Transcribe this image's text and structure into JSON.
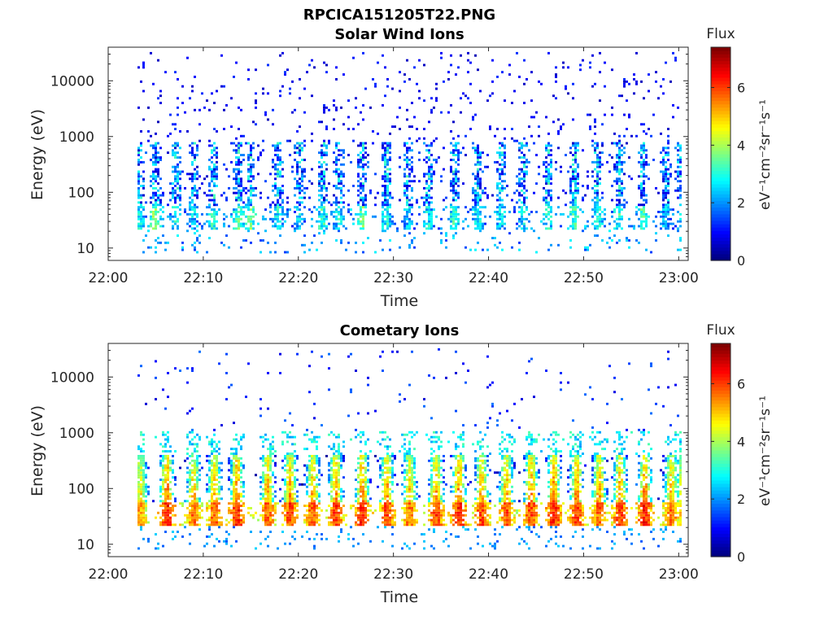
{
  "figure": {
    "title": "RPCICA151205T22.PNG"
  },
  "chart_data": [
    {
      "type": "heatmap",
      "title": "Solar Wind Ions",
      "xlabel": "Time",
      "ylabel": "Energy (eV)",
      "x_ticks": [
        "22:00",
        "22:10",
        "22:20",
        "22:30",
        "22:40",
        "22:50",
        "23:00"
      ],
      "xlim_minutes": [
        0,
        61
      ],
      "y_ticks": [
        "10",
        "100",
        "1000",
        "10000"
      ],
      "y_scale": "log",
      "ylim": [
        6,
        40000
      ],
      "colorbar": {
        "title": "Flux",
        "label": "eV⁻¹cm⁻²sr⁻¹s⁻¹",
        "range": [
          0,
          7.4
        ],
        "ticks": [
          "0",
          "2",
          "4",
          "6"
        ],
        "colormap": "jet"
      },
      "data_start_minute": 3,
      "bursts": [
        {
          "t": 3.3,
          "peak": 3.5
        },
        {
          "t": 5.0,
          "peak": 4.4
        },
        {
          "t": 7.2,
          "peak": 3.6
        },
        {
          "t": 9.0,
          "peak": 3.2
        },
        {
          "t": 11.1,
          "peak": 3.6
        },
        {
          "t": 13.8,
          "peak": 4.0
        },
        {
          "t": 15.0,
          "peak": 4.2
        },
        {
          "t": 17.9,
          "peak": 3.6
        },
        {
          "t": 20.2,
          "peak": 3.2
        },
        {
          "t": 22.6,
          "peak": 3.8
        },
        {
          "t": 24.3,
          "peak": 3.4
        },
        {
          "t": 26.8,
          "peak": 4.2
        },
        {
          "t": 29.4,
          "peak": 3.6
        },
        {
          "t": 31.6,
          "peak": 3.2
        },
        {
          "t": 33.8,
          "peak": 3.4
        },
        {
          "t": 36.5,
          "peak": 3.8
        },
        {
          "t": 39.0,
          "peak": 3.6
        },
        {
          "t": 41.4,
          "peak": 3.4
        },
        {
          "t": 43.8,
          "peak": 3.4
        },
        {
          "t": 46.4,
          "peak": 3.6
        },
        {
          "t": 49.2,
          "peak": 4.0
        },
        {
          "t": 51.6,
          "peak": 3.6
        },
        {
          "t": 53.9,
          "peak": 3.8
        },
        {
          "t": 56.4,
          "peak": 4.0
        },
        {
          "t": 58.8,
          "peak": 3.2
        },
        {
          "t": 60.4,
          "peak": 3.2
        }
      ]
    },
    {
      "type": "heatmap",
      "title": "Cometary Ions",
      "xlabel": "Time",
      "ylabel": "Energy (eV)",
      "x_ticks": [
        "22:00",
        "22:10",
        "22:20",
        "22:30",
        "22:40",
        "22:50",
        "23:00"
      ],
      "xlim_minutes": [
        0,
        61
      ],
      "y_ticks": [
        "10",
        "100",
        "1000",
        "10000"
      ],
      "y_scale": "log",
      "ylim": [
        6,
        40000
      ],
      "colorbar": {
        "title": "Flux",
        "label": "eV⁻¹cm⁻²sr⁻¹s⁻¹",
        "range": [
          0,
          7.4
        ],
        "ticks": [
          "0",
          "2",
          "4",
          "6"
        ],
        "colormap": "jet"
      },
      "data_start_minute": 3,
      "bursts": [
        {
          "t": 3.4,
          "peak": 5.8
        },
        {
          "t": 6.2,
          "peak": 6.8
        },
        {
          "t": 9.0,
          "peak": 6.2
        },
        {
          "t": 11.2,
          "peak": 6.4
        },
        {
          "t": 13.6,
          "peak": 6.8
        },
        {
          "t": 16.8,
          "peak": 6.4
        },
        {
          "t": 19.2,
          "peak": 6.6
        },
        {
          "t": 21.6,
          "peak": 6.4
        },
        {
          "t": 24.0,
          "peak": 6.6
        },
        {
          "t": 26.8,
          "peak": 6.8
        },
        {
          "t": 29.4,
          "peak": 6.6
        },
        {
          "t": 31.8,
          "peak": 6.2
        },
        {
          "t": 34.6,
          "peak": 6.6
        },
        {
          "t": 37.0,
          "peak": 6.8
        },
        {
          "t": 39.4,
          "peak": 6.6
        },
        {
          "t": 42.0,
          "peak": 6.4
        },
        {
          "t": 44.6,
          "peak": 6.6
        },
        {
          "t": 47.0,
          "peak": 6.8
        },
        {
          "t": 49.4,
          "peak": 6.6
        },
        {
          "t": 51.8,
          "peak": 6.4
        },
        {
          "t": 54.0,
          "peak": 6.6
        },
        {
          "t": 56.6,
          "peak": 6.8
        },
        {
          "t": 59.4,
          "peak": 6.2
        },
        {
          "t": 60.6,
          "peak": 5.8
        }
      ]
    }
  ]
}
